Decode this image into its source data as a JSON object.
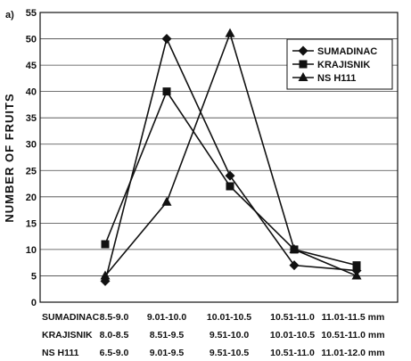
{
  "chart_data": {
    "type": "line",
    "panel_label": "a)",
    "ylabel": "NUMBER OF FRUITS",
    "ylim": [
      0,
      55
    ],
    "yticks": [
      0,
      5,
      10,
      15,
      20,
      25,
      30,
      35,
      40,
      45,
      50,
      55
    ],
    "grid": true,
    "legend_placement": "top-right",
    "category_rows": [
      {
        "name": "SUMADINAC",
        "labels": [
          "8.5-9.0",
          "9.01-10.0",
          "10.01-10.5",
          "10.51-11.0",
          "11.01-11.5 mm"
        ]
      },
      {
        "name": "KRAJISNIK",
        "labels": [
          "8.0-8.5",
          "8.51-9.5",
          "9.51-10.0",
          "10.01-10.5",
          "10.51-11.0 mm"
        ]
      },
      {
        "name": "NS H111",
        "labels": [
          "6.5-9.0",
          "9.01-9.5",
          "9.51-10.5",
          "10.51-11.0",
          "11.01-12.0 mm"
        ]
      }
    ],
    "series": [
      {
        "name": "SUMADINAC",
        "marker": "diamond",
        "values": [
          4,
          50,
          24,
          7,
          6
        ]
      },
      {
        "name": "KRAJISNIK",
        "marker": "square",
        "values": [
          11,
          40,
          22,
          10,
          7
        ]
      },
      {
        "name": "NS H111",
        "marker": "triangle",
        "values": [
          5,
          19,
          51,
          10,
          5
        ]
      }
    ]
  }
}
